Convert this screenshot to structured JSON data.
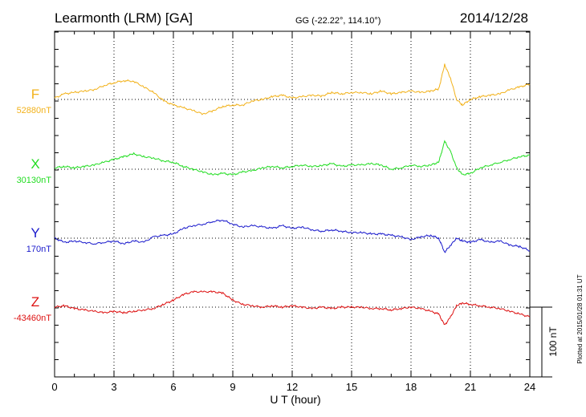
{
  "header": {
    "station": "Learmonth (LRM)  [GA]",
    "coords": "GG (-22.22°, 114.10°)",
    "date": "2014/12/28"
  },
  "side_note": "Plotted at 2015/01/28 01:31  UT",
  "colors": {
    "F": "#f2b21b",
    "X": "#22dd22",
    "Y": "#1a1acc",
    "Z": "#dd1111"
  },
  "chart_data": {
    "type": "line",
    "xlabel": "U T (hour)",
    "xlim": [
      0,
      24
    ],
    "xticks": [
      "0",
      "3",
      "6",
      "9",
      "12",
      "15",
      "18",
      "21",
      "24"
    ],
    "scale_bar": {
      "label": "100 nT",
      "value_nT": 100
    },
    "series": [
      {
        "name": "F",
        "baseline_label": "52880nT",
        "x": [
          0,
          0.5,
          1,
          1.5,
          2,
          2.5,
          3,
          3.5,
          4,
          4.5,
          5,
          5.5,
          6,
          6.5,
          7,
          7.5,
          8,
          8.5,
          9,
          9.5,
          10,
          10.5,
          11,
          11.5,
          12,
          12.5,
          13,
          13.5,
          14,
          14.5,
          15,
          15.5,
          16,
          16.5,
          17,
          17.5,
          18,
          18.5,
          19,
          19.4,
          19.7,
          20,
          20.3,
          20.6,
          21,
          21.5,
          22,
          22.5,
          23,
          23.5,
          24
        ],
        "values": [
          2,
          8,
          10,
          12,
          14,
          20,
          24,
          27,
          26,
          18,
          10,
          -2,
          -8,
          -12,
          -16,
          -21,
          -16,
          -10,
          -8,
          -8,
          -2,
          0,
          4,
          6,
          2,
          4,
          6,
          5,
          10,
          8,
          10,
          10,
          8,
          12,
          8,
          10,
          12,
          10,
          12,
          15,
          50,
          30,
          0,
          -8,
          0,
          4,
          6,
          8,
          14,
          18,
          22
        ]
      },
      {
        "name": "X",
        "baseline_label": "30130nT",
        "x": [
          0,
          0.5,
          1,
          1.5,
          2,
          2.5,
          3,
          3.5,
          4,
          4.5,
          5,
          5.5,
          6,
          6.5,
          7,
          7.5,
          8,
          8.5,
          9,
          9.5,
          10,
          10.5,
          11,
          11.5,
          12,
          12.5,
          13,
          13.5,
          14,
          14.5,
          15,
          15.5,
          16,
          16.5,
          17,
          17.5,
          18,
          18.5,
          19,
          19.4,
          19.7,
          20,
          20.3,
          20.6,
          21,
          21.5,
          22,
          22.5,
          23,
          23.5,
          24
        ],
        "values": [
          2,
          4,
          2,
          4,
          6,
          10,
          14,
          18,
          22,
          18,
          16,
          12,
          10,
          4,
          0,
          -4,
          -8,
          -6,
          -8,
          -4,
          -2,
          2,
          4,
          2,
          4,
          6,
          4,
          5,
          8,
          4,
          6,
          6,
          8,
          6,
          0,
          2,
          6,
          4,
          6,
          10,
          40,
          25,
          2,
          -8,
          -6,
          2,
          6,
          10,
          14,
          18,
          20
        ]
      },
      {
        "name": "Y",
        "baseline_label": "170nT",
        "x": [
          0,
          0.5,
          1,
          1.5,
          2,
          2.5,
          3,
          3.5,
          4,
          4.5,
          5,
          5.5,
          6,
          6.5,
          7,
          7.5,
          8,
          8.5,
          9,
          9.5,
          10,
          10.5,
          11,
          11.5,
          12,
          12.5,
          13,
          13.5,
          14,
          14.5,
          15,
          15.5,
          16,
          16.5,
          17,
          17.5,
          18,
          18.5,
          19,
          19.4,
          19.7,
          20,
          20.3,
          20.6,
          21,
          21.5,
          22,
          22.5,
          23,
          23.5,
          24
        ],
        "values": [
          0,
          -6,
          -4,
          -6,
          -8,
          -6,
          -4,
          -8,
          -4,
          -6,
          2,
          4,
          6,
          14,
          18,
          20,
          24,
          26,
          20,
          16,
          18,
          16,
          14,
          18,
          14,
          16,
          12,
          10,
          12,
          10,
          8,
          8,
          6,
          6,
          4,
          2,
          -2,
          2,
          4,
          0,
          -20,
          -10,
          0,
          -4,
          -6,
          -2,
          -6,
          -4,
          -10,
          -12,
          -18
        ]
      },
      {
        "name": "Z",
        "baseline_label": "-43460nT",
        "x": [
          0,
          0.5,
          1,
          1.5,
          2,
          2.5,
          3,
          3.5,
          4,
          4.5,
          5,
          5.5,
          6,
          6.5,
          7,
          7.5,
          8,
          8.5,
          9,
          9.5,
          10,
          10.5,
          11,
          11.5,
          12,
          12.5,
          13,
          13.5,
          14,
          14.5,
          15,
          15.5,
          16,
          16.5,
          17,
          17.5,
          18,
          18.5,
          19,
          19.4,
          19.7,
          20,
          20.3,
          20.6,
          21,
          21.5,
          22,
          22.5,
          23,
          23.5,
          24
        ],
        "values": [
          0,
          2,
          -2,
          -4,
          -6,
          -8,
          -6,
          -8,
          -6,
          -4,
          -2,
          4,
          10,
          18,
          22,
          22,
          22,
          20,
          10,
          4,
          2,
          0,
          2,
          0,
          2,
          0,
          -2,
          0,
          -2,
          0,
          0,
          0,
          -2,
          -2,
          -4,
          -2,
          0,
          -2,
          -6,
          -10,
          -26,
          -14,
          2,
          6,
          4,
          2,
          0,
          -2,
          -6,
          -10,
          -14
        ]
      }
    ]
  }
}
